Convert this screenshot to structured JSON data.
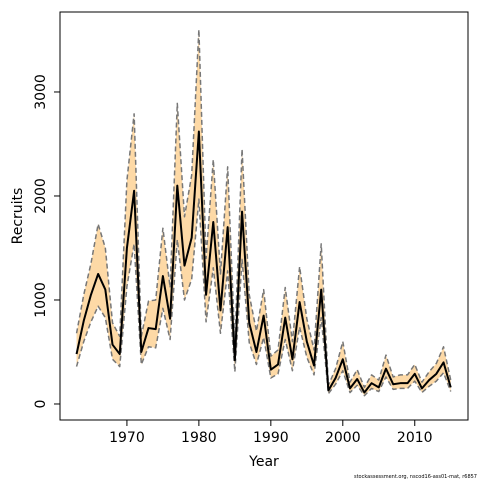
{
  "chart_data": {
    "type": "line_band",
    "xlabel": "Year",
    "ylabel": "Recruits",
    "note": "stockassessment.org, nscod16-ass01-mat, r6857",
    "x": [
      1963,
      1964,
      1965,
      1966,
      1967,
      1968,
      1969,
      1970,
      1971,
      1972,
      1973,
      1974,
      1975,
      1976,
      1977,
      1978,
      1979,
      1980,
      1981,
      1982,
      1983,
      1984,
      1985,
      1986,
      1987,
      1988,
      1989,
      1990,
      1991,
      1992,
      1993,
      1994,
      1995,
      1996,
      1997,
      1998,
      1999,
      2000,
      2001,
      2002,
      2003,
      2004,
      2005,
      2006,
      2007,
      2008,
      2009,
      2010,
      2011,
      2012,
      2013,
      2014,
      2015
    ],
    "values": [
      480,
      800,
      1050,
      1250,
      1100,
      570,
      480,
      1500,
      2050,
      500,
      730,
      720,
      1230,
      820,
      2100,
      1330,
      1600,
      2620,
      1050,
      1750,
      900,
      1700,
      420,
      1850,
      780,
      500,
      850,
      330,
      380,
      830,
      430,
      980,
      600,
      370,
      1100,
      130,
      250,
      430,
      150,
      240,
      110,
      200,
      160,
      340,
      190,
      200,
      200,
      290,
      150,
      230,
      290,
      400,
      160
    ],
    "upper": [
      680,
      1050,
      1350,
      1730,
      1500,
      780,
      650,
      2150,
      2790,
      650,
      990,
      1000,
      1690,
      1120,
      2890,
      1800,
      2200,
      3600,
      1400,
      2350,
      1250,
      2280,
      580,
      2450,
      1050,
      700,
      1100,
      460,
      520,
      1120,
      600,
      1320,
      820,
      520,
      1540,
      180,
      340,
      600,
      210,
      330,
      160,
      280,
      230,
      470,
      260,
      280,
      280,
      380,
      210,
      310,
      390,
      550,
      230
    ],
    "lower": [
      360,
      600,
      790,
      940,
      830,
      430,
      360,
      1130,
      1540,
      380,
      550,
      540,
      920,
      620,
      1580,
      1000,
      1200,
      1970,
      790,
      1310,
      680,
      1280,
      310,
      1390,
      590,
      380,
      640,
      250,
      290,
      620,
      320,
      740,
      450,
      280,
      830,
      100,
      190,
      320,
      110,
      180,
      80,
      150,
      120,
      260,
      140,
      150,
      150,
      220,
      110,
      170,
      220,
      300,
      120
    ],
    "line_color": "#000000",
    "band_color": "#fdd9a6",
    "bound_color": "#777777",
    "xlim": [
      1960.7,
      2017.4
    ],
    "ylim": [
      -154,
      3769
    ],
    "xticks": [
      1970,
      1980,
      1990,
      2000,
      2010
    ],
    "yticks": [
      0,
      1000,
      2000,
      3000
    ]
  }
}
